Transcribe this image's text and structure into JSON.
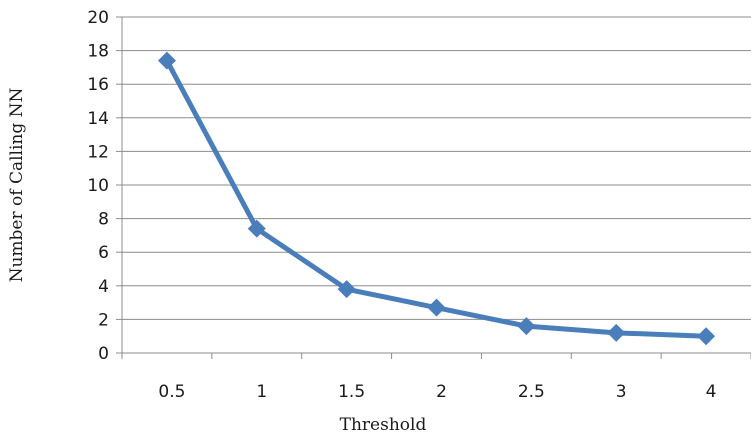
{
  "chart_data": {
    "type": "line",
    "title": "",
    "xlabel": "Threshold",
    "ylabel": "Number of Calling NN",
    "categories": [
      "0.5",
      "1",
      "1.5",
      "2",
      "2.5",
      "3",
      "4"
    ],
    "series": [
      {
        "values": [
          17.4,
          7.4,
          3.8,
          2.7,
          1.6,
          1.2,
          1.0
        ]
      }
    ],
    "ylim": [
      0,
      20
    ],
    "yticks": [
      0,
      2,
      4,
      6,
      8,
      10,
      12,
      14,
      16,
      18,
      20
    ],
    "grid": "horizontal",
    "line_color": "#4a7ebb",
    "marker": "diamond"
  }
}
